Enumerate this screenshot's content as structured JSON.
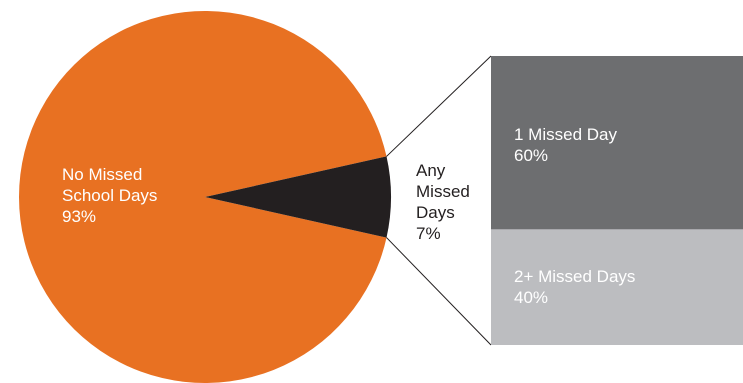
{
  "chart_data": {
    "type": "bar-of-pie",
    "pie": {
      "slices": [
        {
          "label_lines": [
            "No Missed",
            "School Days"
          ],
          "value_label": "93%",
          "value": 93,
          "color": "#E87122"
        },
        {
          "label_lines": [
            "Any",
            "Missed",
            "Days"
          ],
          "value_label": "7%",
          "value": 7,
          "color": "#231F20"
        }
      ]
    },
    "breakdown_of": "Any Missed Days",
    "bar": {
      "segments": [
        {
          "label": "1 Missed Day",
          "value_label": "60%",
          "value": 60,
          "color": "#6D6E70"
        },
        {
          "label": "2+ Missed Days",
          "value_label": "40%",
          "value": 40,
          "color": "#BCBDC0"
        }
      ]
    }
  }
}
